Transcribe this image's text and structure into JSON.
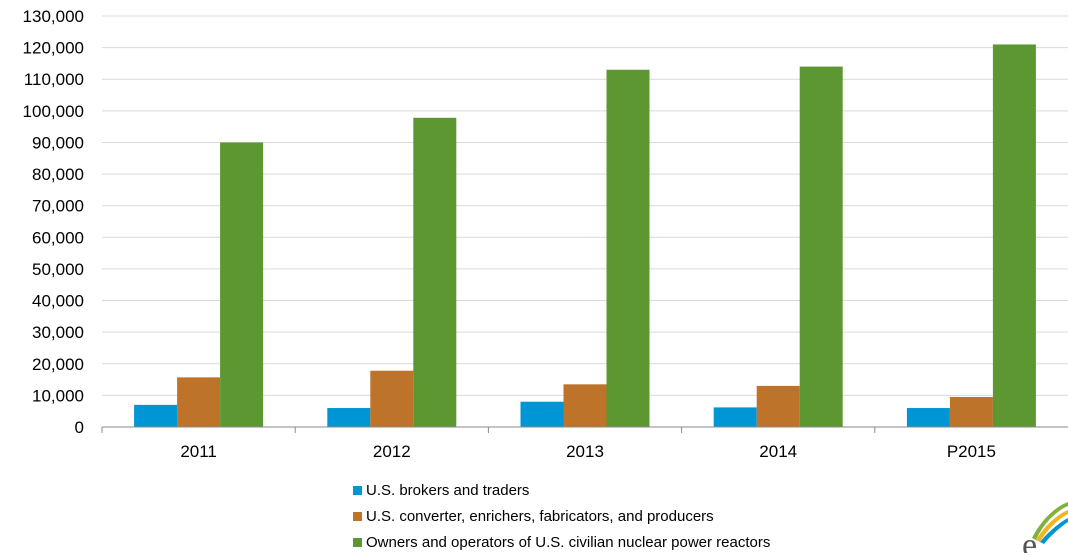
{
  "chart_data": {
    "type": "bar",
    "categories": [
      "2011",
      "2012",
      "2013",
      "2014",
      "P2015"
    ],
    "series": [
      {
        "name": "U.S. brokers and traders",
        "color": "#0096d6",
        "values": [
          7000,
          6000,
          8000,
          6200,
          6000
        ]
      },
      {
        "name": "U.S. converter, enrichers, fabricators, and producers",
        "color": "#bd732a",
        "values": [
          15700,
          17800,
          13500,
          13000,
          9500
        ]
      },
      {
        "name": "Owners and operators of U.S. civilian nuclear power reactors",
        "color": "#5d9732",
        "values": [
          90000,
          97800,
          113000,
          114000,
          121000
        ]
      }
    ],
    "ylim": [
      0,
      130000
    ],
    "yticks": [
      "0",
      "10,000",
      "20,000",
      "30,000",
      "40,000",
      "50,000",
      "60,000",
      "70,000",
      "80,000",
      "90,000",
      "100,000",
      "110,000",
      "120,000",
      "130,000"
    ],
    "grid": true,
    "legend_position": "bottom-center"
  },
  "logo": {
    "name": "eia-logo-icon",
    "colors": [
      "#7fb13c",
      "#f2b51c",
      "#0096d6",
      "#555555"
    ]
  }
}
